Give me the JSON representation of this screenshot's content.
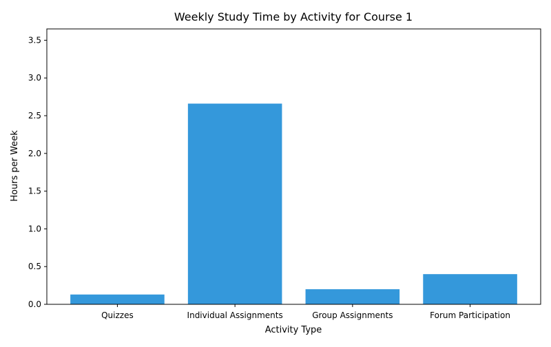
{
  "chart_data": {
    "type": "bar",
    "title": "Weekly Study Time by Activity for Course 1",
    "xlabel": "Activity Type",
    "ylabel": "Hours per Week",
    "categories": [
      "Quizzes",
      "Individual Assignments",
      "Group Assignments",
      "Forum Participation"
    ],
    "values": [
      0.13,
      2.66,
      0.2,
      0.4
    ],
    "ylim": [
      0,
      3.65
    ],
    "yticks": [
      0.0,
      0.5,
      1.0,
      1.5,
      2.0,
      2.5,
      3.0,
      3.5
    ],
    "ytick_labels": [
      "0.0",
      "0.5",
      "1.0",
      "1.5",
      "2.0",
      "2.5",
      "3.0",
      "3.5"
    ],
    "grid": false,
    "bar_color": "#3498db"
  }
}
